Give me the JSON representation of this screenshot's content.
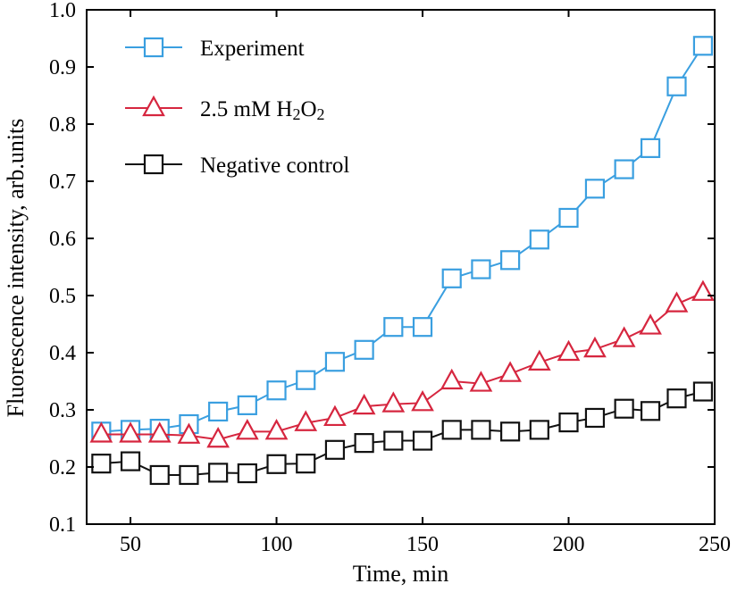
{
  "chart_data": {
    "type": "line",
    "xlabel": "Time, min",
    "ylabel": "Fluorescence intensity, arb.units",
    "xlim": [
      35,
      250
    ],
    "ylim": [
      0.1,
      1.0
    ],
    "xticks": [
      50,
      100,
      150,
      200,
      250
    ],
    "yticks": [
      0.1,
      0.2,
      0.3,
      0.4,
      0.5,
      0.6,
      0.7,
      0.8,
      0.9,
      1.0
    ],
    "xtick_labels": [
      "50",
      "100",
      "150",
      "200",
      "250"
    ],
    "ytick_labels": [
      "0.1",
      "0.2",
      "0.3",
      "0.4",
      "0.5",
      "0.6",
      "0.7",
      "0.8",
      "0.9",
      "1.0"
    ],
    "legend_position": "top-left",
    "x": [
      40,
      50,
      60,
      70,
      80,
      90,
      100,
      110,
      120,
      130,
      140,
      150,
      160,
      170,
      180,
      190,
      200,
      209,
      219,
      228,
      237,
      246
    ],
    "series": [
      {
        "name": "Experiment",
        "label_main": "Experiment",
        "color": "#3a9fe0",
        "marker": "square",
        "values": [
          0.262,
          0.265,
          0.267,
          0.275,
          0.297,
          0.308,
          0.334,
          0.352,
          0.384,
          0.405,
          0.445,
          0.445,
          0.53,
          0.546,
          0.562,
          0.598,
          0.636,
          0.687,
          0.721,
          0.758,
          0.866,
          0.937
        ]
      },
      {
        "name": "2.5 mM H2O2",
        "label_main": "2.5 mM H",
        "label_sub1": "2",
        "label_mid": "O",
        "label_sub2": "2",
        "color": "#d6263f",
        "marker": "triangle",
        "values": [
          0.257,
          0.257,
          0.257,
          0.255,
          0.248,
          0.262,
          0.262,
          0.277,
          0.286,
          0.306,
          0.31,
          0.312,
          0.35,
          0.346,
          0.363,
          0.383,
          0.4,
          0.406,
          0.424,
          0.446,
          0.485,
          0.505
        ]
      },
      {
        "name": "Negative control",
        "label_main": "Negative control",
        "color": "#111111",
        "marker": "square",
        "values": [
          0.206,
          0.21,
          0.186,
          0.186,
          0.19,
          0.189,
          0.205,
          0.206,
          0.23,
          0.242,
          0.246,
          0.246,
          0.265,
          0.265,
          0.262,
          0.265,
          0.278,
          0.286,
          0.302,
          0.298,
          0.32,
          0.332
        ]
      }
    ]
  }
}
